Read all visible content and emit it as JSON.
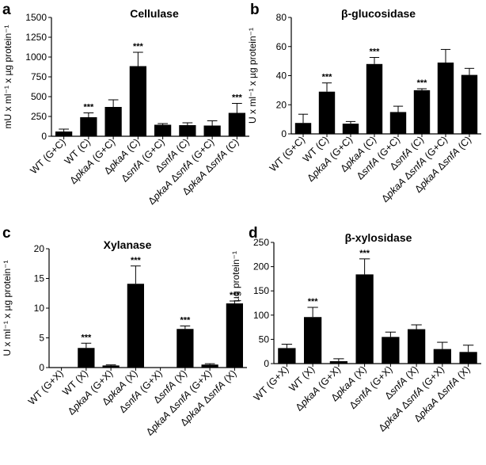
{
  "figure_kind": "grouped enzyme activity bar charts",
  "chart_data": [
    {
      "type": "bar",
      "panel_label": "a",
      "title": "Cellulase",
      "ylabel": "mU x ml⁻¹ x µg protein⁻¹",
      "ylim": [
        0,
        1500
      ],
      "yticks": [
        0,
        250,
        500,
        750,
        1000,
        1250,
        1500
      ],
      "categories": [
        {
          "prefix": "WT (G+C)",
          "italic": "",
          "mid": "",
          "italic2": "",
          "suffix": ""
        },
        {
          "prefix": "WT (C)",
          "italic": "",
          "mid": "",
          "italic2": "",
          "suffix": ""
        },
        {
          "prefix": "Δ",
          "italic": "pkaA",
          "mid": "",
          "italic2": "",
          "suffix": " (G+C)"
        },
        {
          "prefix": "Δ",
          "italic": "pkaA",
          "mid": "",
          "italic2": "",
          "suffix": "  (C)"
        },
        {
          "prefix": "Δ",
          "italic": "snfA",
          "mid": "",
          "italic2": "",
          "suffix": " (G+C)"
        },
        {
          "prefix": "Δ",
          "italic": "snfA",
          "mid": "",
          "italic2": "",
          "suffix": " (C)"
        },
        {
          "prefix": "Δ",
          "italic": "pkaA",
          "mid": " Δ",
          "italic2": "snfA",
          "suffix": " (G+C)"
        },
        {
          "prefix": "Δ",
          "italic": "pkaA",
          "mid": " Δ",
          "italic2": "snfA",
          "suffix": "  (C)"
        }
      ],
      "values": [
        60,
        240,
        370,
        885,
        145,
        140,
        135,
        295
      ],
      "errors": [
        30,
        55,
        90,
        175,
        15,
        30,
        60,
        120
      ],
      "significance": [
        "",
        "***",
        "",
        "***",
        "",
        "",
        "",
        "***"
      ]
    },
    {
      "type": "bar",
      "panel_label": "b",
      "title": "β-glucosidase",
      "ylabel": "U x ml⁻¹ x µg protein⁻¹",
      "ylim": [
        0,
        80
      ],
      "yticks": [
        0,
        20,
        40,
        60,
        80
      ],
      "categories": [
        {
          "prefix": "WT (G+C)",
          "italic": "",
          "mid": "",
          "italic2": "",
          "suffix": ""
        },
        {
          "prefix": "WT (C)",
          "italic": "",
          "mid": "",
          "italic2": "",
          "suffix": ""
        },
        {
          "prefix": "Δ",
          "italic": "pkaA",
          "mid": "",
          "italic2": "",
          "suffix": " (G+C)"
        },
        {
          "prefix": "Δ",
          "italic": "pkaA",
          "mid": "",
          "italic2": "",
          "suffix": " (C)"
        },
        {
          "prefix": "Δ",
          "italic": "snfA",
          "mid": "",
          "italic2": "",
          "suffix": " (G+C)"
        },
        {
          "prefix": "Δ",
          "italic": "snfA",
          "mid": "",
          "italic2": "",
          "suffix": " (C)"
        },
        {
          "prefix": "Δ",
          "italic": "pkaA",
          "mid": " Δ",
          "italic2": "snfA",
          "suffix": " (G+C)"
        },
        {
          "prefix": "Δ",
          "italic": "pkaA",
          "mid": " Δ",
          "italic2": "snfA",
          "suffix": " (C)"
        }
      ],
      "values": [
        7.5,
        29,
        7,
        48,
        15,
        30,
        49,
        40.5
      ],
      "errors": [
        6,
        6,
        1.5,
        4.5,
        4,
        1,
        9,
        4.5
      ],
      "significance": [
        "",
        "***",
        "",
        "***",
        "",
        "***",
        "",
        ""
      ]
    },
    {
      "type": "bar",
      "panel_label": "c",
      "title": "Xylanase",
      "ylabel": "U x ml⁻¹ x µg protein⁻¹",
      "ylim": [
        0,
        20
      ],
      "yticks": [
        0,
        5,
        10,
        15,
        20
      ],
      "categories": [
        {
          "prefix": "WT (G+X)",
          "italic": "",
          "mid": "",
          "italic2": "",
          "suffix": ""
        },
        {
          "prefix": "WT (X)",
          "italic": "",
          "mid": "",
          "italic2": "",
          "suffix": ""
        },
        {
          "prefix": "Δ",
          "italic": "pkaA",
          "mid": "",
          "italic2": "",
          "suffix": " (G+X)"
        },
        {
          "prefix": "Δ",
          "italic": "pkaA",
          "mid": "",
          "italic2": "",
          "suffix": " (X)"
        },
        {
          "prefix": "Δ",
          "italic": "snfA",
          "mid": "",
          "italic2": "",
          "suffix": " (G+X)"
        },
        {
          "prefix": "Δ",
          "italic": "snfA",
          "mid": "",
          "italic2": "",
          "suffix": " (X)"
        },
        {
          "prefix": "Δ",
          "italic": "pkaA",
          "mid": " Δ",
          "italic2": "snfA",
          "suffix": " (G+X)"
        },
        {
          "prefix": "Δ",
          "italic": "pkaA",
          "mid": " Δ",
          "italic2": "snfA",
          "suffix": " (X)"
        }
      ],
      "values": [
        0,
        3.3,
        0.35,
        14.1,
        0,
        6.5,
        0.5,
        10.8
      ],
      "errors": [
        0,
        0.8,
        0.1,
        3.0,
        0,
        0.5,
        0.15,
        0.4
      ],
      "significance": [
        "",
        "***",
        "",
        "***",
        "",
        "***",
        "",
        "***"
      ]
    },
    {
      "type": "bar",
      "panel_label": "d",
      "title": "β-xylosidase",
      "ylabel": "mU x ml⁻¹ x µg protein⁻¹",
      "ylim": [
        0,
        250
      ],
      "yticks": [
        0,
        50,
        100,
        150,
        200,
        250
      ],
      "categories": [
        {
          "prefix": "WT (G+X)",
          "italic": "",
          "mid": "",
          "italic2": "",
          "suffix": ""
        },
        {
          "prefix": "WT (X)",
          "italic": "",
          "mid": "",
          "italic2": "",
          "suffix": ""
        },
        {
          "prefix": "Δ",
          "italic": "pkaA",
          "mid": "",
          "italic2": "",
          "suffix": " (G+X)"
        },
        {
          "prefix": "Δ",
          "italic": "pkaA",
          "mid": "",
          "italic2": "",
          "suffix": " (X)"
        },
        {
          "prefix": "Δ",
          "italic": "snfA",
          "mid": "",
          "italic2": "",
          "suffix": " (G+X)"
        },
        {
          "prefix": "Δ",
          "italic": "snfA",
          "mid": "",
          "italic2": "",
          "suffix": " (X)"
        },
        {
          "prefix": "Δ",
          "italic": "pkaA",
          "mid": " Δ",
          "italic2": "snfA",
          "suffix": " (G+X)"
        },
        {
          "prefix": "Δ",
          "italic": "pkaA",
          "mid": " Δ",
          "italic2": "snfA",
          "suffix": " (X)"
        }
      ],
      "values": [
        32,
        96,
        5,
        184,
        55,
        71,
        30,
        24
      ],
      "errors": [
        8,
        20,
        5,
        32,
        10,
        9,
        14,
        14
      ],
      "significance": [
        "",
        "***",
        "",
        "***",
        "",
        "",
        "",
        ""
      ]
    }
  ]
}
